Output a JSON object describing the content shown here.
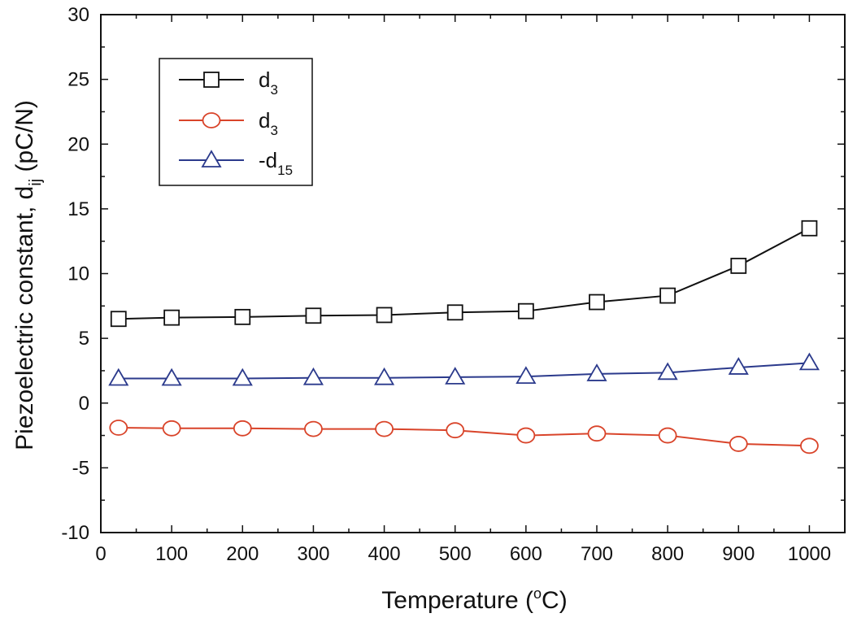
{
  "chart_data": {
    "type": "line",
    "title": "",
    "xlabel": "Temperature",
    "xlabel_unit_open": " (",
    "xlabel_unit_degree": "o",
    "xlabel_unit_close": "C)",
    "ylabel": "Piezoelectric constant, d",
    "ylabel_sub": "ij",
    "ylabel_unit": " (pC/N)",
    "xlim": [
      0,
      1050
    ],
    "ylim": [
      -10,
      30
    ],
    "xticks": [
      "0",
      "100",
      "200",
      "300",
      "400",
      "500",
      "600",
      "700",
      "800",
      "900",
      "1000"
    ],
    "xtick_values": [
      0,
      100,
      200,
      300,
      400,
      500,
      600,
      700,
      800,
      900,
      1000
    ],
    "yticks": [
      "-10",
      "-5",
      "0",
      "5",
      "10",
      "15",
      "20",
      "25",
      "30"
    ],
    "ytick_values": [
      -10,
      -5,
      0,
      5,
      10,
      15,
      20,
      25,
      30
    ],
    "legend_position": "top-left",
    "x": [
      25,
      100,
      200,
      300,
      400,
      500,
      600,
      700,
      800,
      900,
      1000
    ],
    "series": [
      {
        "name": "d",
        "name_sub": "3",
        "marker": "square",
        "color": "#111111",
        "values": [
          6.5,
          6.6,
          6.65,
          6.75,
          6.8,
          7.0,
          7.1,
          7.8,
          8.3,
          10.6,
          13.5
        ]
      },
      {
        "name": "d",
        "name_sub": "3",
        "marker": "circle",
        "color": "#d9442a",
        "values": [
          -1.9,
          -1.95,
          -1.95,
          -2.0,
          -2.0,
          -2.1,
          -2.5,
          -2.35,
          -2.5,
          -3.15,
          -3.3
        ]
      },
      {
        "name": "-d",
        "name_sub": "15",
        "marker": "triangle",
        "color": "#2b3a8c",
        "values": [
          1.9,
          1.9,
          1.9,
          1.95,
          1.95,
          2.0,
          2.05,
          2.25,
          2.35,
          2.75,
          3.1
        ]
      }
    ]
  }
}
